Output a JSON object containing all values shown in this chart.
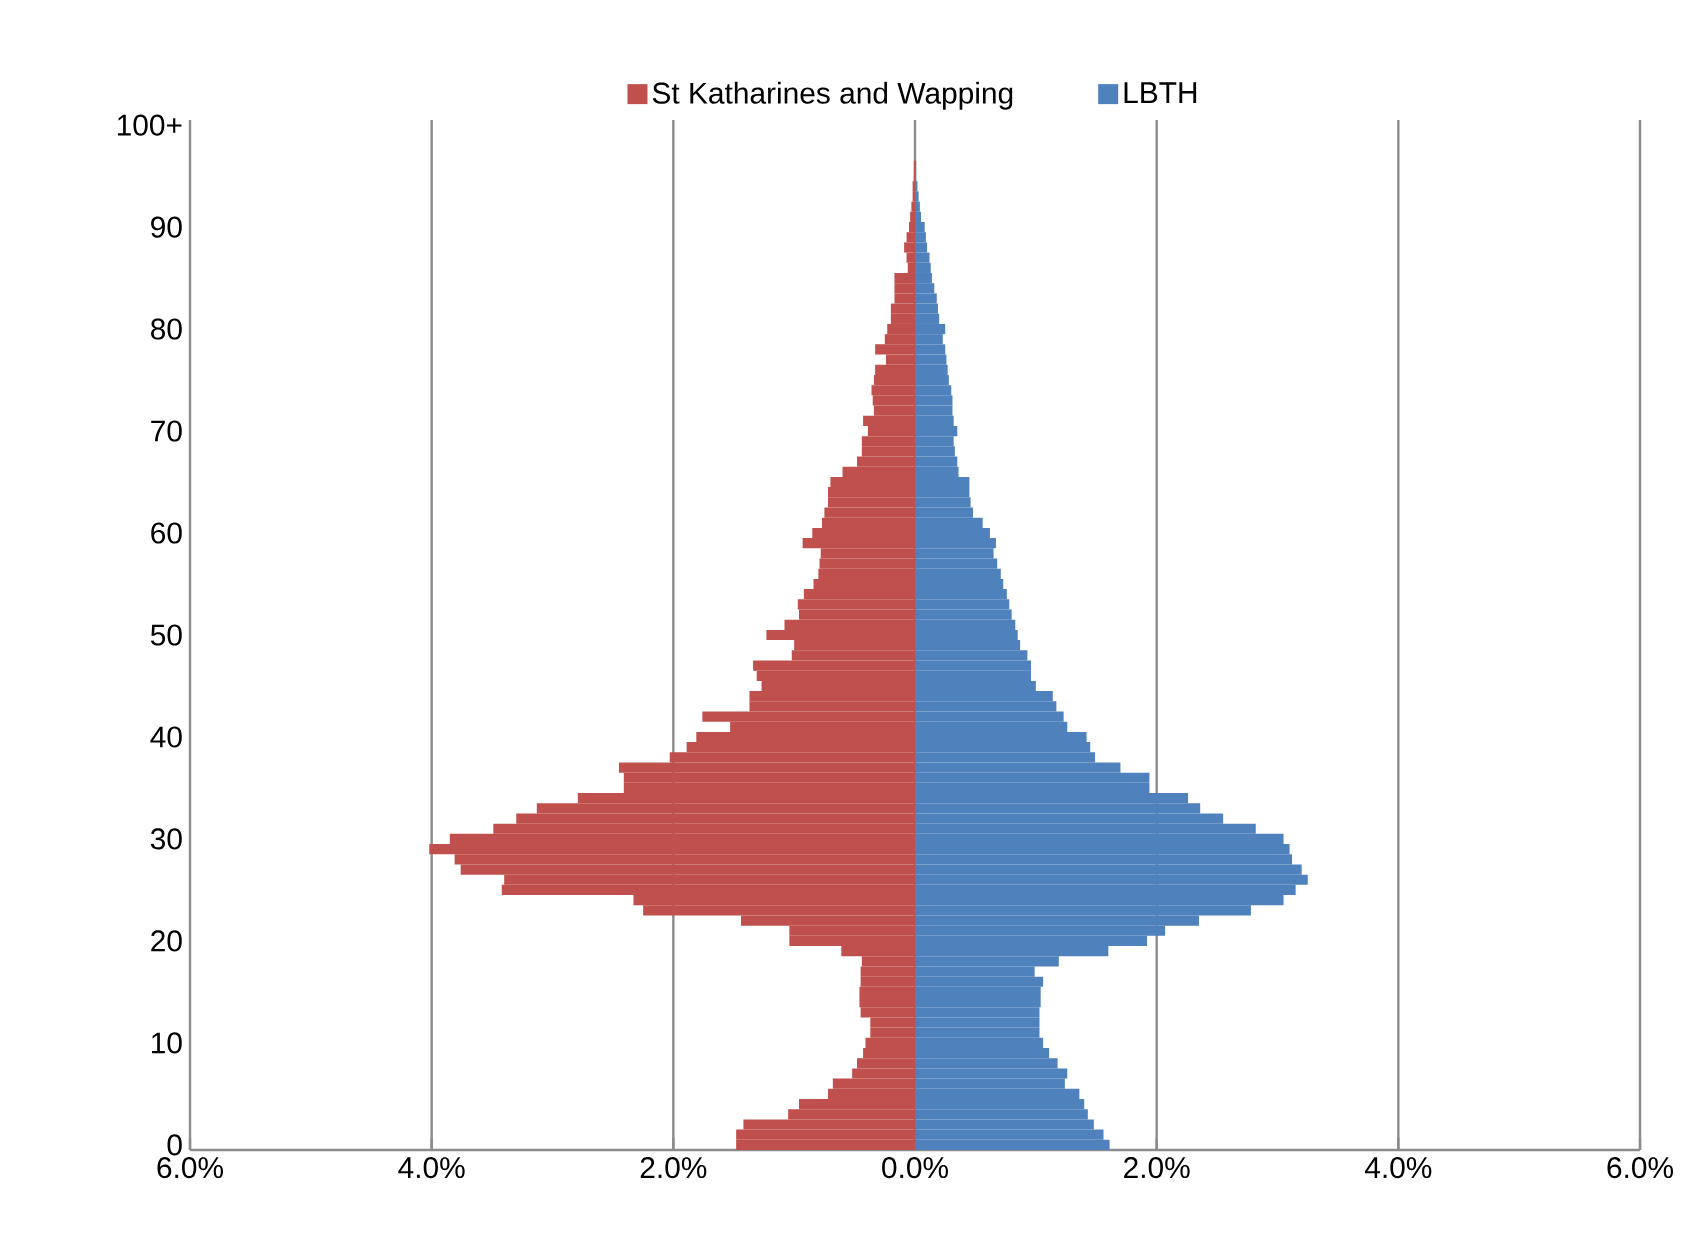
{
  "chart_data": {
    "type": "bar",
    "orientation": "horizontal",
    "stacked": true,
    "grid": "x",
    "legend": "top",
    "categories": [
      "100+",
      null,
      null,
      null,
      null,
      null,
      null,
      null,
      null,
      null,
      "90",
      null,
      null,
      null,
      null,
      null,
      null,
      null,
      null,
      null,
      "80",
      null,
      null,
      null,
      null,
      null,
      null,
      null,
      null,
      null,
      "70",
      null,
      null,
      null,
      null,
      null,
      null,
      null,
      null,
      null,
      "60",
      null,
      null,
      null,
      null,
      null,
      null,
      null,
      null,
      null,
      "50",
      null,
      null,
      null,
      null,
      null,
      null,
      null,
      null,
      null,
      "40",
      null,
      null,
      null,
      null,
      null,
      null,
      null,
      null,
      null,
      "30",
      null,
      null,
      null,
      null,
      null,
      null,
      null,
      null,
      null,
      "20",
      null,
      null,
      null,
      null,
      null,
      null,
      null,
      null,
      null,
      "10",
      null,
      null,
      null,
      null,
      null,
      null,
      null,
      null,
      null,
      "0"
    ],
    "xlim": [
      -6,
      6
    ],
    "xticks": [
      {
        "value": -6,
        "label": "6.0%"
      },
      {
        "value": -4,
        "label": "4.0%"
      },
      {
        "value": -2,
        "label": "2.0%"
      },
      {
        "value": 0,
        "label": "0.0%"
      },
      {
        "value": 2,
        "label": "2.0%"
      },
      {
        "value": 4,
        "label": "4.0%"
      },
      {
        "value": 6,
        "label": "6.0%"
      }
    ],
    "series": [
      {
        "name": "St Katharines and Wapping",
        "color": "#c0504d",
        "values": [
          0,
          0,
          0,
          0,
          -0.01,
          -0.01,
          -0.02,
          -0.02,
          -0.03,
          -0.04,
          -0.05,
          -0.07,
          -0.09,
          -0.07,
          -0.06,
          -0.17,
          -0.17,
          -0.17,
          -0.2,
          -0.2,
          -0.23,
          -0.25,
          -0.33,
          -0.24,
          -0.33,
          -0.34,
          -0.36,
          -0.35,
          -0.34,
          -0.43,
          -0.39,
          -0.44,
          -0.44,
          -0.48,
          -0.6,
          -0.7,
          -0.72,
          -0.72,
          -0.75,
          -0.77,
          -0.85,
          -0.93,
          -0.78,
          -0.79,
          -0.8,
          -0.84,
          -0.92,
          -0.97,
          -0.96,
          -1.08,
          -1.23,
          -1.0,
          -1.02,
          -1.34,
          -1.31,
          -1.27,
          -1.37,
          -1.37,
          -1.76,
          -1.53,
          -1.81,
          -1.89,
          -2.03,
          -2.45,
          -2.41,
          -2.41,
          -2.79,
          -3.13,
          -3.3,
          -3.49,
          -3.85,
          -4.02,
          -3.81,
          -3.76,
          -3.4,
          -3.42,
          -2.33,
          -2.25,
          -1.44,
          -1.04,
          -1.04,
          -0.61,
          -0.44,
          -0.45,
          -0.45,
          -0.46,
          -0.46,
          -0.45,
          -0.37,
          -0.37,
          -0.41,
          -0.43,
          -0.48,
          -0.52,
          -0.68,
          -0.72,
          -0.96,
          -1.05,
          -1.42,
          -1.48,
          -1.48
        ]
      },
      {
        "name": "LBTH",
        "color": "#4f81bd",
        "values": [
          0,
          0,
          0,
          0,
          0.01,
          0.01,
          0.02,
          0.03,
          0.04,
          0.05,
          0.08,
          0.09,
          0.1,
          0.12,
          0.13,
          0.14,
          0.16,
          0.18,
          0.19,
          0.2,
          0.25,
          0.23,
          0.25,
          0.26,
          0.27,
          0.28,
          0.3,
          0.31,
          0.31,
          0.32,
          0.35,
          0.32,
          0.33,
          0.35,
          0.36,
          0.45,
          0.45,
          0.46,
          0.48,
          0.56,
          0.62,
          0.67,
          0.65,
          0.68,
          0.71,
          0.73,
          0.76,
          0.78,
          0.8,
          0.83,
          0.85,
          0.87,
          0.93,
          0.96,
          0.96,
          1.0,
          1.14,
          1.17,
          1.23,
          1.26,
          1.42,
          1.45,
          1.49,
          1.7,
          1.94,
          1.94,
          2.26,
          2.36,
          2.55,
          2.82,
          3.05,
          3.1,
          3.12,
          3.2,
          3.25,
          3.15,
          3.05,
          2.78,
          2.35,
          2.07,
          1.92,
          1.6,
          1.19,
          0.99,
          1.06,
          1.04,
          1.04,
          1.03,
          1.03,
          1.03,
          1.06,
          1.11,
          1.18,
          1.26,
          1.24,
          1.36,
          1.4,
          1.43,
          1.48,
          1.56,
          1.61
        ]
      }
    ]
  }
}
